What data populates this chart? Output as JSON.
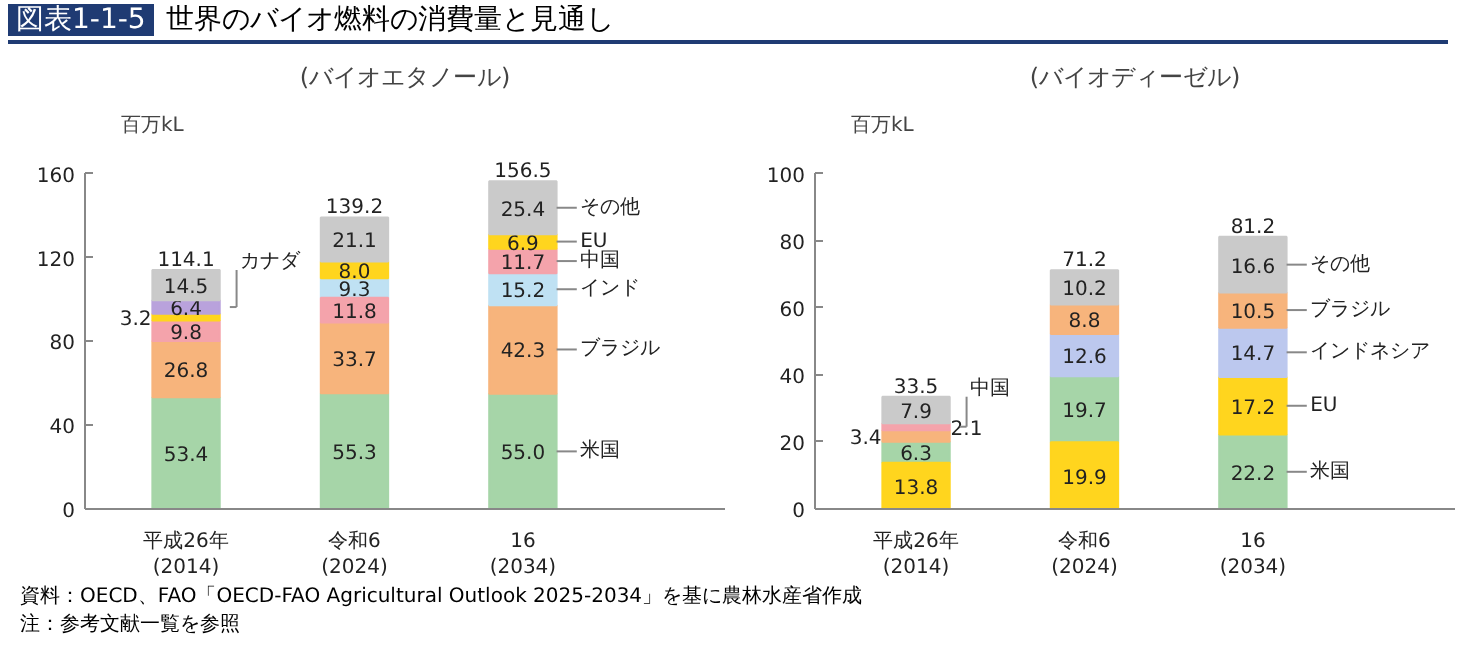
{
  "chart_data": [
    {
      "type": "bar",
      "title": "図表1-1-5 世界のバイオ燃料の消費量と見通し",
      "subtitle": "(バイオエタノール)",
      "ylabel": "百万kL",
      "categories": [
        "平成26年\n(2014)",
        "令和6\n(2024)",
        "16\n(2034)"
      ],
      "series": [
        {
          "name": "米国",
          "color": "#a6d5a8",
          "values": [
            53.4,
            55.3,
            55.0
          ],
          "base": [
            0,
            0,
            0
          ],
          "value_labels": [
            "53.4",
            "55.3",
            "55.0"
          ]
        },
        {
          "name": "ブラジル",
          "color": "#f7b47c",
          "values": [
            26.8,
            33.7,
            42.3
          ],
          "base": [
            53.4,
            55.3,
            55.0
          ],
          "value_labels": [
            "26.8",
            "33.7",
            "42.3"
          ]
        },
        {
          "name": "インド",
          "color": "#bfe1f3",
          "values": [
            null,
            9.3,
            15.2
          ],
          "base": [
            null,
            100.8,
            97.3
          ],
          "value_labels": [
            null,
            "9.3",
            "15.2"
          ]
        },
        {
          "name": "中国",
          "color": "#f4a3ab",
          "values": [
            9.8,
            11.8,
            11.7
          ],
          "base": [
            80.2,
            89.0,
            112.5
          ],
          "value_labels": [
            "9.8",
            "11.8",
            "11.7"
          ]
        },
        {
          "name": "EU",
          "color": "#ffd51e",
          "values": [
            3.2,
            8.0,
            6.9
          ],
          "base": [
            90.0,
            110.1,
            124.2
          ],
          "value_labels": [
            "3.2",
            "8.0",
            "6.9"
          ]
        },
        {
          "name": "カナダ",
          "color": "#b9a2dc",
          "values": [
            6.4,
            null,
            null
          ],
          "base": [
            93.2,
            null,
            null
          ],
          "value_labels": [
            "6.4",
            null,
            null
          ]
        },
        {
          "name": "その他",
          "color": "#cacaca",
          "values": [
            14.5,
            21.1,
            25.4
          ],
          "base": [
            99.6,
            118.1,
            131.1
          ],
          "value_labels": [
            "14.5",
            "21.1",
            "25.4"
          ]
        }
      ],
      "totals": [
        "114.1",
        "139.2",
        "156.5"
      ],
      "data_labels": true,
      "ylim": [
        0,
        160
      ],
      "yticks": [
        0,
        40,
        80,
        120,
        160
      ],
      "grid": false,
      "legend": false,
      "annotations": [
        "資料：OECD、FAO「OECD-FAO Agricultural Outlook 2025-2034」を基に農林水産省作成",
        "注：参考文献一覧を参照"
      ]
    },
    {
      "type": "bar",
      "subtitle": "(バイオディーゼル)",
      "ylabel": "百万kL",
      "categories": [
        "平成26年\n(2014)",
        "令和6\n(2024)",
        "16\n(2034)"
      ],
      "series": [
        {
          "name": "米国",
          "color": "#a6d5a8",
          "values": [
            6.3,
            19.7,
            22.2
          ],
          "base": [
            13.8,
            19.9,
            0
          ],
          "value_labels": [
            "6.3",
            "19.7",
            "22.2"
          ]
        },
        {
          "name": "EU",
          "color": "#ffd51e",
          "values": [
            13.8,
            19.9,
            17.2
          ],
          "base": [
            0,
            0,
            22.2
          ],
          "value_labels": [
            "13.8",
            "19.9",
            "17.2"
          ]
        },
        {
          "name": "インドネシア",
          "color": "#bcc8ee",
          "values": [
            null,
            12.6,
            14.7
          ],
          "base": [
            null,
            39.6,
            39.4
          ],
          "value_labels": [
            null,
            "12.6",
            "14.7"
          ]
        },
        {
          "name": "ブラジル",
          "color": "#f7b47c",
          "values": [
            3.4,
            8.8,
            10.5
          ],
          "base": [
            20.1,
            52.2,
            54.1
          ],
          "value_labels": [
            "3.4",
            "8.8",
            "10.5"
          ]
        },
        {
          "name": "中国",
          "color": "#f4a3ab",
          "values": [
            2.1,
            null,
            null
          ],
          "base": [
            23.5,
            null,
            null
          ],
          "value_labels": [
            "2.1",
            null,
            null
          ]
        },
        {
          "name": "その他",
          "color": "#cacaca",
          "values": [
            7.9,
            10.2,
            16.6
          ],
          "base": [
            25.6,
            61.0,
            64.6
          ],
          "value_labels": [
            "7.9",
            "10.2",
            "16.6"
          ]
        }
      ],
      "totals": [
        "33.5",
        "71.2",
        "81.2"
      ],
      "data_labels": true,
      "ylim": [
        0,
        100
      ],
      "yticks": [
        0,
        20,
        40,
        60,
        80,
        100
      ],
      "grid": false,
      "legend": false
    }
  ]
}
